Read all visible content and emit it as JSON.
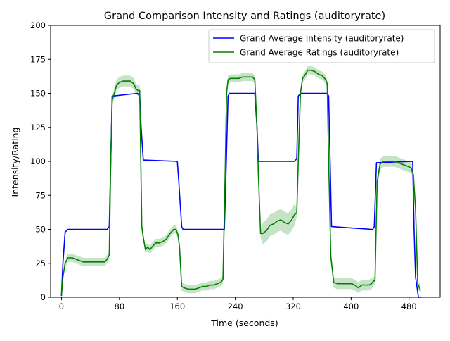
{
  "chart_data": {
    "type": "line",
    "title": "Grand Comparison Intensity and Ratings (auditoryrate)",
    "xlabel": "Time (seconds)",
    "ylabel": "Intensity/Rating",
    "xlim": [
      -15,
      523
    ],
    "ylim": [
      0,
      200
    ],
    "xticks": [
      0,
      80,
      160,
      240,
      320,
      400,
      480
    ],
    "yticks": [
      0,
      25,
      50,
      75,
      100,
      125,
      150,
      175,
      200
    ],
    "xtick_labels": [
      "0",
      "80",
      "160",
      "240",
      "320",
      "400",
      "480"
    ],
    "ytick_labels": [
      "0",
      "25",
      "50",
      "75",
      "100",
      "125",
      "150",
      "175",
      "200"
    ],
    "grid": false,
    "legend_position": "top-right",
    "series": [
      {
        "name": "Grand Average Intensity (auditoryrate)",
        "color": "#0000ff",
        "x": [
          0,
          2,
          5,
          9,
          63,
          66,
          68,
          70,
          105,
          108,
          110,
          113,
          160,
          162,
          166,
          168,
          225,
          227,
          230,
          232,
          267,
          270,
          272,
          275,
          322,
          325,
          327,
          330,
          367,
          369,
          371,
          373,
          428,
          430,
          432,
          435,
          485,
          487,
          489,
          493,
          497
        ],
        "y": [
          1,
          25,
          48,
          50,
          50,
          52,
          100,
          148,
          150,
          148,
          125,
          101,
          100,
          85,
          52,
          50,
          50,
          88,
          148,
          150,
          150,
          125,
          100,
          100,
          100,
          102,
          148,
          150,
          150,
          148,
          100,
          52,
          50,
          50,
          52,
          99,
          100,
          50,
          15,
          0,
          0
        ]
      },
      {
        "name": "Grand Average Ratings (auditoryrate)",
        "color": "#008000",
        "band_color": "#008000",
        "x": [
          0,
          2,
          5,
          9,
          15,
          20,
          25,
          30,
          35,
          40,
          45,
          50,
          55,
          60,
          63,
          66,
          68,
          70,
          73,
          76,
          80,
          85,
          90,
          95,
          100,
          103,
          106,
          108,
          111,
          113,
          116,
          119,
          122,
          125,
          130,
          135,
          140,
          145,
          150,
          155,
          158,
          161,
          163,
          166,
          169,
          175,
          180,
          185,
          190,
          195,
          200,
          205,
          210,
          215,
          220,
          223,
          226,
          228,
          230,
          233,
          236,
          240,
          245,
          250,
          255,
          260,
          264,
          267,
          270,
          272,
          275,
          278,
          283,
          288,
          293,
          298,
          303,
          308,
          313,
          318,
          322,
          325,
          327,
          330,
          333,
          336,
          340,
          345,
          350,
          355,
          360,
          365,
          367,
          369,
          372,
          376,
          381,
          386,
          391,
          396,
          401,
          405,
          410,
          415,
          420,
          425,
          428,
          431,
          433,
          436,
          440,
          445,
          450,
          455,
          460,
          465,
          470,
          475,
          480,
          483,
          486,
          489,
          492,
          496
        ],
        "y": [
          1,
          15,
          25,
          29,
          29,
          28,
          27,
          26,
          26,
          26,
          26,
          26,
          26,
          26,
          28,
          31,
          100,
          145,
          150,
          156,
          158,
          159,
          159,
          159,
          157,
          153,
          152,
          152,
          52,
          44,
          35,
          37,
          35,
          37,
          40,
          40,
          41,
          43,
          47,
          50,
          50,
          46,
          37,
          8,
          7,
          6,
          6,
          6,
          7,
          8,
          8,
          9,
          9,
          10,
          11,
          13,
          90,
          150,
          160,
          161,
          161,
          161,
          161,
          162,
          162,
          162,
          162,
          160,
          125,
          90,
          47,
          47,
          49,
          53,
          54,
          56,
          57,
          55,
          54,
          57,
          61,
          62,
          100,
          150,
          161,
          163,
          167,
          167,
          166,
          164,
          163,
          160,
          157,
          100,
          30,
          11,
          10,
          10,
          10,
          10,
          10,
          9,
          7,
          9,
          9,
          9,
          10,
          12,
          12,
          85,
          98,
          100,
          100,
          100,
          100,
          99,
          98,
          97,
          96,
          95,
          90,
          65,
          10,
          5
        ]
      }
    ]
  }
}
